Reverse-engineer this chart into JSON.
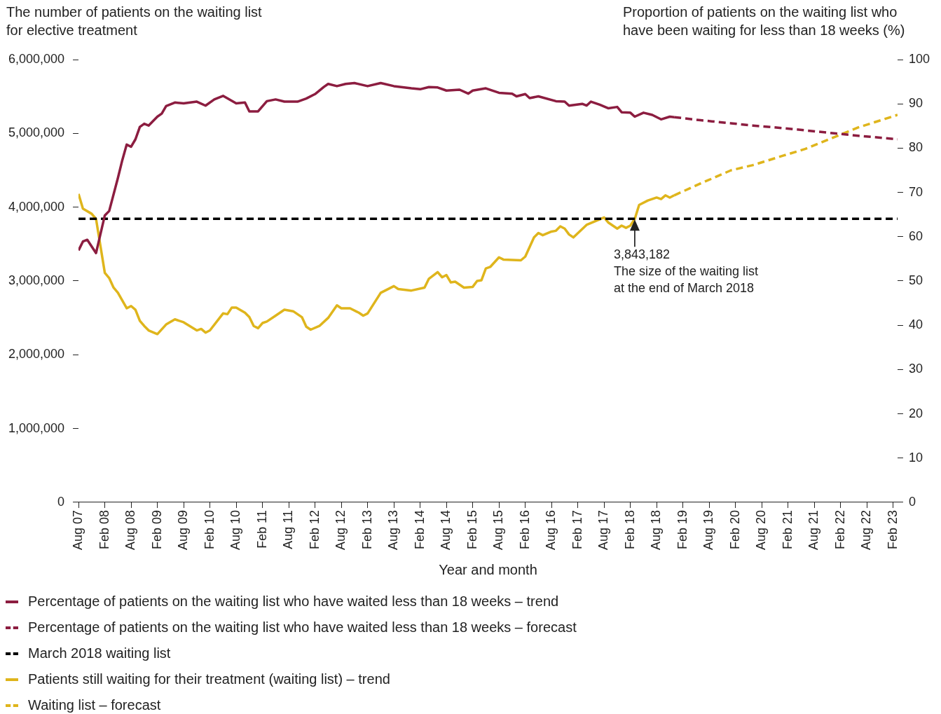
{
  "chart_data": {
    "type": "line",
    "ylabel": "The number of patients on the waiting list for elective treatment",
    "y2label": "Proportion of patients on the waiting list who have been waiting for less than 18 weeks (%)",
    "xlabel": "Year and month",
    "xlim": [
      "2007-08",
      "2023-03"
    ],
    "xticks": [
      {
        "value": "2007-08",
        "label": "Aug 07"
      },
      {
        "value": "2008-02",
        "label": "Feb 08"
      },
      {
        "value": "2008-08",
        "label": "Aug 08"
      },
      {
        "value": "2009-02",
        "label": "Feb 09"
      },
      {
        "value": "2009-08",
        "label": "Aug 09"
      },
      {
        "value": "2010-02",
        "label": "Feb 10"
      },
      {
        "value": "2010-08",
        "label": "Aug 10"
      },
      {
        "value": "2011-02",
        "label": "Feb 11"
      },
      {
        "value": "2011-08",
        "label": "Aug 11"
      },
      {
        "value": "2012-02",
        "label": "Feb 12"
      },
      {
        "value": "2012-08",
        "label": "Aug 12"
      },
      {
        "value": "2013-02",
        "label": "Feb 13"
      },
      {
        "value": "2013-08",
        "label": "Aug 13"
      },
      {
        "value": "2014-02",
        "label": "Feb 14"
      },
      {
        "value": "2014-08",
        "label": "Aug 14"
      },
      {
        "value": "2015-02",
        "label": "Feb 15"
      },
      {
        "value": "2015-08",
        "label": "Aug 15"
      },
      {
        "value": "2016-02",
        "label": "Feb 16"
      },
      {
        "value": "2016-08",
        "label": "Aug 16"
      },
      {
        "value": "2017-02",
        "label": "Feb 17"
      },
      {
        "value": "2017-08",
        "label": "Aug 17"
      },
      {
        "value": "2018-02",
        "label": "Feb 18"
      },
      {
        "value": "2018-08",
        "label": "Aug 18"
      },
      {
        "value": "2019-02",
        "label": "Feb 19"
      },
      {
        "value": "2019-08",
        "label": "Aug 19"
      },
      {
        "value": "2020-02",
        "label": "Feb 20"
      },
      {
        "value": "2020-08",
        "label": "Aug 20"
      },
      {
        "value": "2021-02",
        "label": "Feb 21"
      },
      {
        "value": "2021-08",
        "label": "Aug 21"
      },
      {
        "value": "2022-02",
        "label": "Feb 22"
      },
      {
        "value": "2022-08",
        "label": "Aug 22"
      },
      {
        "value": "2023-02",
        "label": "Feb 23"
      }
    ],
    "ylim": [
      0,
      6000000
    ],
    "yticks": [
      0,
      {
        "value": 1000000,
        "label": "1,000,000"
      },
      {
        "value": 2000000,
        "label": "2,000,000"
      },
      {
        "value": 3000000,
        "label": "3,000,000"
      },
      {
        "value": 4000000,
        "label": "4,000,000"
      },
      {
        "value": 5000000,
        "label": "5,000,000"
      },
      {
        "value": 6000000,
        "label": "6,000,000"
      }
    ],
    "y2lim": [
      0,
      100
    ],
    "y2ticks": [
      0,
      10,
      20,
      30,
      40,
      50,
      60,
      70,
      80,
      90,
      100
    ],
    "legend": "bottom",
    "series": [
      {
        "name": "Percentage of patients on the waiting list who have waited less than 18 weeks – trend",
        "color": "#8c1d40",
        "axis": "y2",
        "line_style": "solid",
        "x": [
          "2007-08",
          "2007-09",
          "2007-10",
          "2007-12",
          "2008-02",
          "2008-03",
          "2008-05",
          "2008-06",
          "2008-07",
          "2008-08",
          "2008-09",
          "2008-10",
          "2008-11",
          "2008-12",
          "2009-02",
          "2009-03",
          "2009-04",
          "2009-06",
          "2009-08",
          "2009-11",
          "2010-01",
          "2010-03",
          "2010-05",
          "2010-08",
          "2010-10",
          "2010-11",
          "2011-01",
          "2011-03",
          "2011-05",
          "2011-07",
          "2011-10",
          "2011-12",
          "2012-02",
          "2012-04",
          "2012-05",
          "2012-07",
          "2012-09",
          "2012-11",
          "2013-02",
          "2013-05",
          "2013-08",
          "2013-12",
          "2014-02",
          "2014-04",
          "2014-06",
          "2014-08",
          "2014-11",
          "2015-01",
          "2015-02",
          "2015-05",
          "2015-08",
          "2015-11",
          "2015-12",
          "2016-02",
          "2016-03",
          "2016-05",
          "2016-09",
          "2016-11",
          "2016-12",
          "2017-03",
          "2017-04",
          "2017-05",
          "2017-07",
          "2017-09",
          "2017-11",
          "2017-12",
          "2018-02",
          "2018-03",
          "2018-05",
          "2018-07",
          "2018-09",
          "2018-11",
          "2018-12"
        ],
        "values": [
          56.9,
          58.9,
          59.3,
          56.3,
          64.8,
          65.8,
          73.3,
          77.3,
          80.8,
          80.3,
          82.0,
          84.8,
          85.5,
          85.1,
          87.1,
          87.8,
          89.5,
          90.3,
          90.1,
          90.5,
          89.6,
          91.0,
          91.8,
          90.1,
          90.3,
          88.3,
          88.3,
          90.6,
          91.0,
          90.5,
          90.5,
          91.2,
          92.2,
          93.8,
          94.5,
          94.0,
          94.5,
          94.7,
          94.0,
          94.7,
          94.0,
          93.5,
          93.3,
          93.8,
          93.7,
          93.0,
          93.2,
          92.3,
          93.0,
          93.5,
          92.5,
          92.3,
          91.7,
          92.2,
          91.3,
          91.7,
          90.6,
          90.5,
          89.6,
          90.0,
          89.6,
          90.5,
          89.8,
          89.0,
          89.3,
          88.1,
          88.0,
          87.1,
          88.0,
          87.5,
          86.5,
          87.1,
          87.0
        ]
      },
      {
        "name": "Percentage of patients on the waiting list who have waited less than 18 weeks – forecast",
        "color": "#8c1d40",
        "axis": "y2",
        "line_style": "dashed",
        "x": [
          "2018-12",
          "2019-06",
          "2020-01",
          "2020-06",
          "2021-01",
          "2021-06",
          "2022-01",
          "2022-06",
          "2023-03"
        ],
        "values": [
          87.0,
          86.3,
          85.6,
          85.1,
          84.5,
          84.0,
          83.3,
          82.8,
          82.0
        ]
      },
      {
        "name": "March 2018 waiting list",
        "color": "#000000",
        "line_style": "dashed",
        "x": [
          "2007-08",
          "2023-03"
        ],
        "values": [
          3843182,
          3843182
        ]
      },
      {
        "name": "Patients still waiting for their treatment (waiting list) – trend",
        "color": "#dfb51c",
        "line_style": "solid",
        "x": [
          "2007-08",
          "2007-09",
          "2007-11",
          "2007-12",
          "2008-02",
          "2008-03",
          "2008-04",
          "2008-05",
          "2008-07",
          "2008-08",
          "2008-09",
          "2008-10",
          "2008-11",
          "2008-12",
          "2009-02",
          "2009-04",
          "2009-06",
          "2009-08",
          "2009-11",
          "2009-12",
          "2010-01",
          "2010-02",
          "2010-05",
          "2010-06",
          "2010-07",
          "2010-08",
          "2010-10",
          "2010-11",
          "2010-12",
          "2011-01",
          "2011-02",
          "2011-03",
          "2011-05",
          "2011-07",
          "2011-09",
          "2011-11",
          "2011-12",
          "2012-01",
          "2012-03",
          "2012-05",
          "2012-07",
          "2012-08",
          "2012-10",
          "2012-12",
          "2013-01",
          "2013-02",
          "2013-05",
          "2013-08",
          "2013-09",
          "2013-12",
          "2014-03",
          "2014-04",
          "2014-06",
          "2014-07",
          "2014-08",
          "2014-09",
          "2014-10",
          "2014-12",
          "2015-02",
          "2015-03",
          "2015-04",
          "2015-05",
          "2015-06",
          "2015-08",
          "2015-09",
          "2016-01",
          "2016-02",
          "2016-04",
          "2016-05",
          "2016-06",
          "2016-08",
          "2016-09",
          "2016-10",
          "2016-11",
          "2016-12",
          "2017-01",
          "2017-04",
          "2017-06",
          "2017-08",
          "2017-09",
          "2017-11",
          "2017-12",
          "2018-01",
          "2018-02",
          "2018-03",
          "2018-04",
          "2018-06",
          "2018-08",
          "2018-09",
          "2018-10",
          "2018-11",
          "2018-12"
        ],
        "values": [
          4180000,
          3980000,
          3910000,
          3840000,
          3110000,
          3040000,
          2910000,
          2840000,
          2630000,
          2660000,
          2610000,
          2460000,
          2390000,
          2330000,
          2280000,
          2410000,
          2480000,
          2440000,
          2330000,
          2350000,
          2300000,
          2330000,
          2560000,
          2550000,
          2640000,
          2640000,
          2570000,
          2510000,
          2390000,
          2360000,
          2430000,
          2450000,
          2530000,
          2610000,
          2590000,
          2510000,
          2380000,
          2340000,
          2390000,
          2500000,
          2670000,
          2630000,
          2630000,
          2570000,
          2530000,
          2560000,
          2840000,
          2930000,
          2890000,
          2870000,
          2910000,
          3030000,
          3120000,
          3050000,
          3080000,
          2980000,
          2990000,
          2910000,
          2920000,
          3000000,
          3010000,
          3170000,
          3190000,
          3320000,
          3290000,
          3280000,
          3330000,
          3590000,
          3650000,
          3620000,
          3670000,
          3680000,
          3740000,
          3710000,
          3630000,
          3590000,
          3760000,
          3810000,
          3860000,
          3790000,
          3710000,
          3750000,
          3720000,
          3750000,
          3840000,
          4030000,
          4090000,
          4130000,
          4110000,
          4160000,
          4130000,
          4160000
        ]
      },
      {
        "name": "Waiting list – forecast",
        "color": "#dfb51c",
        "line_style": "dashed",
        "x": [
          "2018-12",
          "2019-06",
          "2020-01",
          "2020-06",
          "2021-01",
          "2021-06",
          "2022-01",
          "2022-06",
          "2023-03"
        ],
        "values": [
          4160000,
          4320000,
          4500000,
          4570000,
          4700000,
          4790000,
          4960000,
          5080000,
          5250000
        ]
      }
    ],
    "annotations": [
      {
        "text": "3,843,182\nThe size of the waiting list\nat the end of March 2018",
        "x": "2018-03",
        "y": 3843182
      }
    ]
  }
}
